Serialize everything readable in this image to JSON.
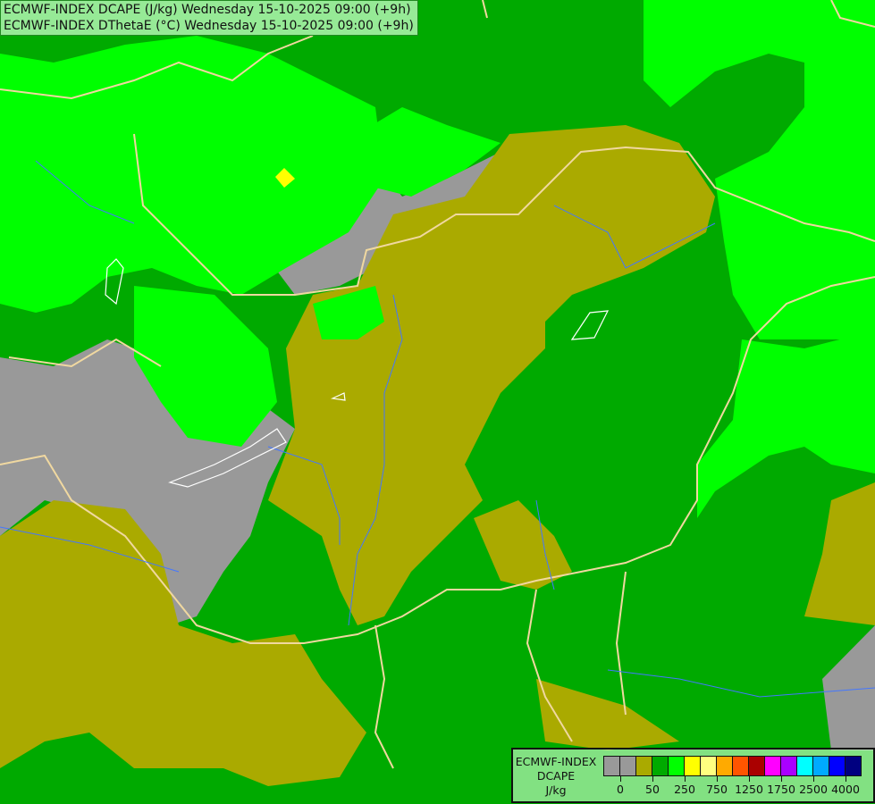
{
  "titles": [
    "ECMWF-INDEX DCAPE (J/kg) Wednesday 15-10-2025 09:00 (+9h)",
    "ECMWF-INDEX DThetaE (°C) Wednesday 15-10-2025 09:00 (+9h)"
  ],
  "legend": {
    "model": "ECMWF-INDEX",
    "parameter": "DCAPE",
    "unit": "J/kg",
    "colors": [
      "#999999",
      "#999999",
      "#aaaa00",
      "#00aa00",
      "#00ff00",
      "#ffff00",
      "#ffff80",
      "#ffaa00",
      "#ff5500",
      "#aa0000",
      "#ff00ff",
      "#aa00ff",
      "#00ffff",
      "#00aaff",
      "#0000ff",
      "#000080"
    ],
    "tick_labels": [
      "0",
      "50",
      "250",
      "750",
      "1250",
      "1750",
      "2500",
      "4000"
    ]
  },
  "colors": {
    "gray": "#999999",
    "olive": "#aaaa00",
    "dark_green": "#00aa00",
    "bright_green": "#00ff00",
    "yellow": "#ffff00",
    "borders": "#f0d8a0",
    "rivers": "#4477ff"
  }
}
